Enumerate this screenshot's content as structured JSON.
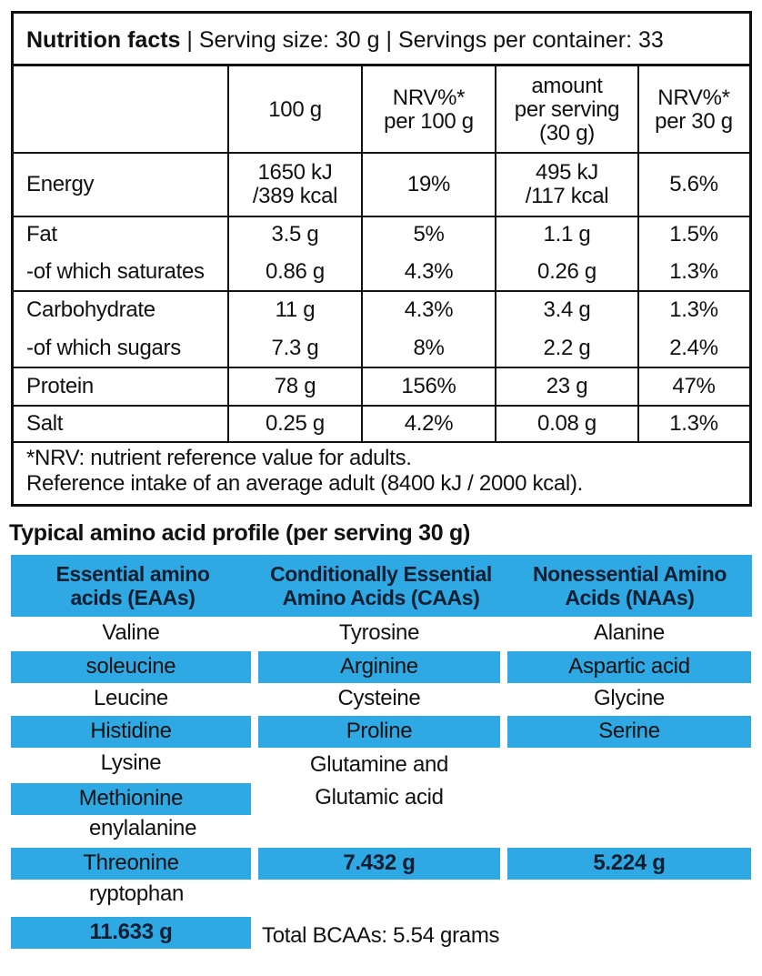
{
  "nutrition": {
    "header_bold": "Nutrition facts",
    "header_rest": " | Serving size: 30 g | Servings per container: 33",
    "columns": [
      "",
      "100 g",
      "NRV%*\nper 100 g",
      "amount\nper serving\n(30 g)",
      "NRV%*\nper 30 g"
    ],
    "rows": [
      [
        "Energy",
        "1650 kJ\n/389 kcal",
        "19%",
        "495 kJ\n/117 kcal",
        "5.6%"
      ],
      [
        "Fat",
        "3.5 g",
        "5%",
        "1.1 g",
        "1.5%"
      ],
      [
        "-of which saturates",
        "0.86 g",
        "4.3%",
        "0.26 g",
        "1.3%"
      ],
      [
        "Carbohydrate",
        "11 g",
        "4.3%",
        "3.4 g",
        "1.3%"
      ],
      [
        "-of which sugars",
        "7.3 g",
        "8%",
        "2.2 g",
        "2.4%"
      ],
      [
        "Protein",
        "78 g",
        "156%",
        "23 g",
        "47%"
      ],
      [
        "Salt",
        "0.25 g",
        "4.2%",
        "0.08 g",
        "1.3%"
      ]
    ],
    "footnote_1": "*NRV: nutrient reference value for adults.",
    "footnote_2": "Reference intake of an average adult (8400 kJ / 2000 kcal)."
  },
  "amino": {
    "title": "Typical amino acid profile (per serving 30 g)",
    "headers": [
      "Essential amino\nacids (EAAs)",
      "Conditionally Essential\nAmino Acids (CAAs)",
      "Nonessential Amino\nAcids (NAAs)"
    ],
    "eaa": [
      "Valine",
      "soleucine",
      "Leucine",
      "Histidine",
      "Lysine",
      "Methionine",
      "enylalanine",
      "Threonine",
      "ryptophan"
    ],
    "caa": [
      "Tyrosine",
      "Arginine",
      "Cysteine",
      "Proline",
      "Glutamine and",
      "Glutamic acid"
    ],
    "naa": [
      "Alanine",
      "Aspartic acid",
      "Glycine",
      "Serine"
    ],
    "eaa_total": "11.633  g",
    "caa_total": "7.432 g",
    "naa_total": "5.224 g",
    "bcaa_total": "Total BCAAs: 5.54  grams",
    "band_color": "#2ea9e4"
  }
}
